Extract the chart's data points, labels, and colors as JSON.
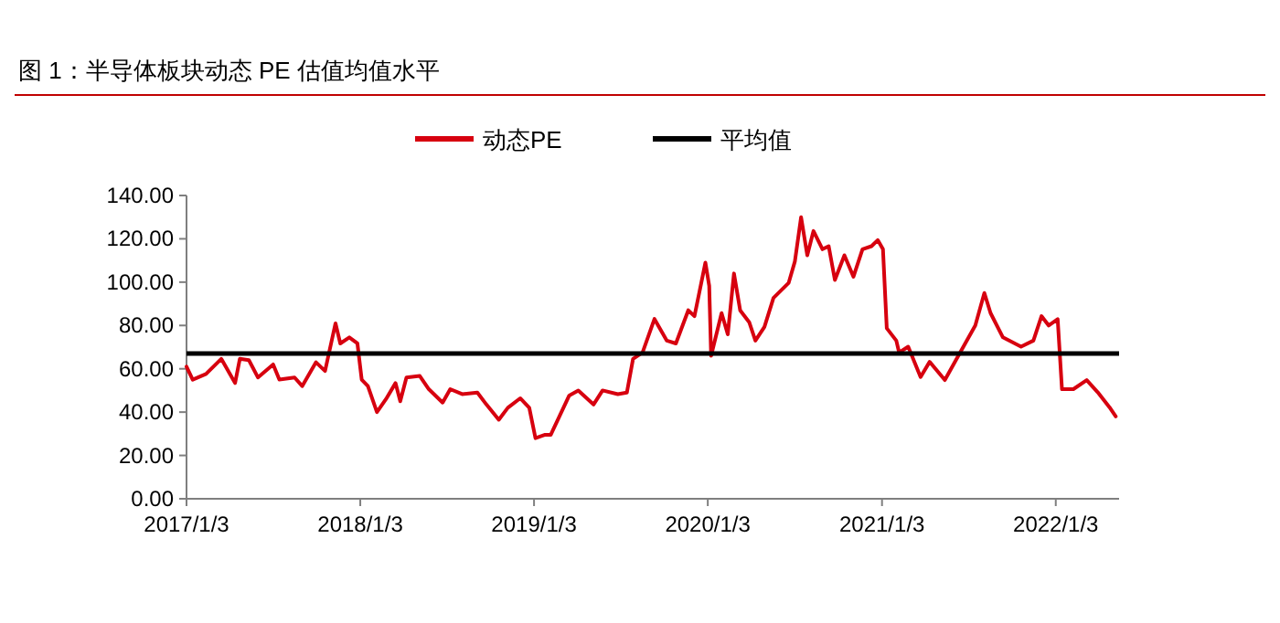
{
  "chart_data": {
    "type": "line",
    "title": "图 1：半导体板块动态 PE 估值均值水平",
    "legend": "top",
    "grid": false,
    "line_style": "solid",
    "marker": "none",
    "xlim": [
      "2017-01-03",
      "2022-05-16"
    ],
    "xticks": [
      {
        "value": "2017-01-03",
        "label": "2017/1/3"
      },
      {
        "value": "2018-01-03",
        "label": "2018/1/3"
      },
      {
        "value": "2019-01-03",
        "label": "2019/1/3"
      },
      {
        "value": "2020-01-03",
        "label": "2020/1/3"
      },
      {
        "value": "2021-01-03",
        "label": "2021/1/3"
      },
      {
        "value": "2022-01-03",
        "label": "2022/1/3"
      }
    ],
    "ylim": [
      0,
      140
    ],
    "yticks": [
      {
        "value": 0,
        "label": "0.00"
      },
      {
        "value": 20,
        "label": "20.00"
      },
      {
        "value": 40,
        "label": "40.00"
      },
      {
        "value": 60,
        "label": "60.00"
      },
      {
        "value": 80,
        "label": "80.00"
      },
      {
        "value": 100,
        "label": "100.00"
      },
      {
        "value": 120,
        "label": "120.00"
      },
      {
        "value": 140,
        "label": "140.00"
      }
    ],
    "ref_lines": [
      {
        "axis": "y",
        "value": 67,
        "label": "平均值",
        "color": "#000000"
      }
    ],
    "series": [
      {
        "name": "动态PE",
        "color": "#d7000f",
        "x": [
          "2017-01-03",
          "2017-01-16",
          "2017-02-13",
          "2017-03-17",
          "2017-04-15",
          "2017-04-25",
          "2017-05-14",
          "2017-06-02",
          "2017-07-04",
          "2017-07-17",
          "2017-08-18",
          "2017-09-03",
          "2017-10-02",
          "2017-10-21",
          "2017-11-12",
          "2017-11-22",
          "2017-12-11",
          "2017-12-28",
          "2018-01-06",
          "2018-01-19",
          "2018-02-07",
          "2018-02-26",
          "2018-03-18",
          "2018-03-28",
          "2018-04-10",
          "2018-05-08",
          "2018-05-27",
          "2018-06-25",
          "2018-07-11",
          "2018-08-05",
          "2018-09-06",
          "2018-09-25",
          "2018-10-21",
          "2018-11-09",
          "2018-12-05",
          "2018-12-24",
          "2019-01-06",
          "2019-01-25",
          "2019-02-07",
          "2019-03-18",
          "2019-04-06",
          "2019-05-08",
          "2019-05-27",
          "2019-06-28",
          "2019-07-17",
          "2019-07-30",
          "2019-08-19",
          "2019-09-13",
          "2019-10-09",
          "2019-10-28",
          "2019-11-23",
          "2019-12-06",
          "2019-12-29",
          "2020-01-06",
          "2020-01-10",
          "2020-02-01",
          "2020-02-14",
          "2020-02-27",
          "2020-03-11",
          "2020-03-30",
          "2020-04-12",
          "2020-05-01",
          "2020-05-20",
          "2020-06-21",
          "2020-07-04",
          "2020-07-17",
          "2020-07-30",
          "2020-08-12",
          "2020-08-31",
          "2020-09-13",
          "2020-09-26",
          "2020-10-16",
          "2020-11-04",
          "2020-11-23",
          "2020-12-12",
          "2020-12-25",
          "2021-01-05",
          "2021-01-13",
          "2021-02-02",
          "2021-02-08",
          "2021-02-27",
          "2021-03-25",
          "2021-04-13",
          "2021-05-15",
          "2021-06-16",
          "2021-07-18",
          "2021-08-06",
          "2021-08-19",
          "2021-09-14",
          "2021-10-22",
          "2021-11-17",
          "2021-12-04",
          "2021-12-19",
          "2022-01-07",
          "2022-01-16",
          "2022-02-09",
          "2022-03-09",
          "2022-04-01",
          "2022-04-26",
          "2022-05-09"
        ],
        "values": [
          61,
          55,
          57.6,
          64.6,
          53.4,
          64.6,
          64,
          56,
          62,
          55,
          56,
          52,
          63,
          59,
          81,
          71.7,
          74.5,
          71.7,
          55,
          52,
          40,
          46,
          53.4,
          45,
          56,
          56.7,
          50.6,
          44.4,
          50.6,
          48.3,
          49,
          43.5,
          36.5,
          42,
          46.4,
          42,
          28,
          29.5,
          29.5,
          47.7,
          50,
          43.5,
          50,
          48.3,
          49,
          64.6,
          67.5,
          83,
          73,
          71.7,
          87,
          84.3,
          109,
          98.3,
          66,
          85.7,
          75.9,
          104,
          87,
          81.5,
          73,
          79.3,
          92.7,
          99.7,
          109.6,
          130,
          112.4,
          123.6,
          115.2,
          116.6,
          101,
          112.4,
          102.5,
          115.2,
          116.6,
          119.4,
          115.2,
          78.7,
          73,
          67.5,
          70.2,
          56.2,
          63.2,
          54.8,
          67.5,
          80,
          95,
          85.7,
          74.5,
          70.2,
          73,
          84.3,
          80,
          82.9,
          50.6,
          50.6,
          54.8,
          49.2,
          42.2,
          38
        ]
      }
    ]
  }
}
